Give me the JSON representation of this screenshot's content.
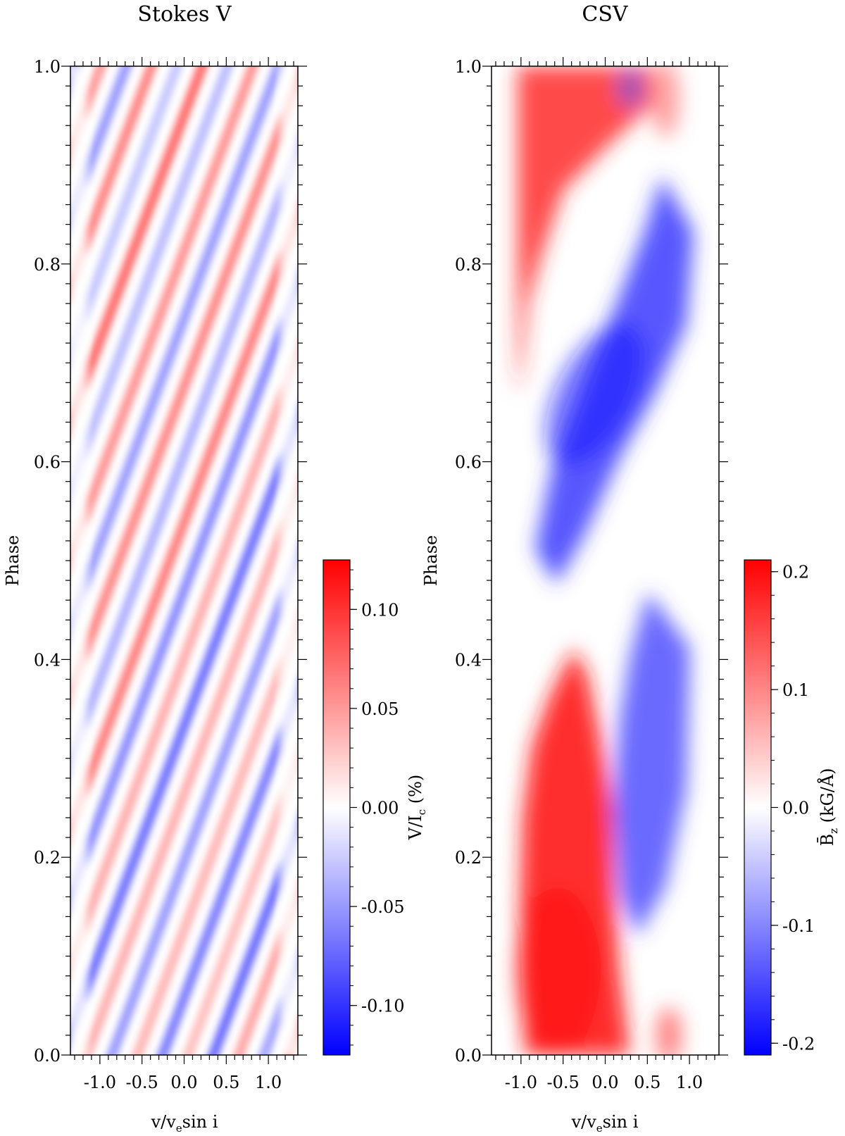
{
  "chart_data": [
    {
      "type": "heatmap",
      "title": "Stokes V",
      "xlabel": {
        "main": "v/v",
        "sub": "e",
        "rest": "sin i"
      },
      "ylabel": "Phase",
      "xlim": [
        -1.35,
        1.35
      ],
      "ylim": [
        0.0,
        1.0
      ],
      "x_ticks": [
        -1.0,
        -0.5,
        0.0,
        0.5,
        1.0
      ],
      "x_tick_labels": [
        "-1.0",
        "-0.5",
        "0.0",
        "0.5",
        "1.0"
      ],
      "y_ticks": [
        0.0,
        0.2,
        0.4,
        0.6,
        0.8,
        1.0
      ],
      "y_tick_labels": [
        "0.0",
        "0.2",
        "0.4",
        "0.6",
        "0.8",
        "1.0"
      ],
      "colorbar": {
        "label": {
          "main": "V/I",
          "sub": "c",
          "rest": " (%)"
        },
        "range": [
          -0.125,
          0.125
        ],
        "ticks": [
          -0.1,
          -0.05,
          0.0,
          0.05,
          0.1
        ],
        "tick_labels": [
          "-0.10",
          "-0.05",
          "0.00",
          "0.05",
          "0.10"
        ],
        "colors": {
          "low": "#0000ff",
          "mid": "#ffffff",
          "high": "#ff0000"
        }
      }
    },
    {
      "type": "heatmap",
      "title": "CSV",
      "xlabel": {
        "main": "v/v",
        "sub": "e",
        "rest": "sin i"
      },
      "ylabel": "Phase",
      "xlim": [
        -1.35,
        1.35
      ],
      "ylim": [
        0.0,
        1.0
      ],
      "x_ticks": [
        -1.0,
        -0.5,
        0.0,
        0.5,
        1.0
      ],
      "x_tick_labels": [
        "-1.0",
        "-0.5",
        "0.0",
        "0.5",
        "1.0"
      ],
      "y_ticks": [
        0.0,
        0.2,
        0.4,
        0.6,
        0.8,
        1.0
      ],
      "y_tick_labels": [
        "0.0",
        "0.2",
        "0.4",
        "0.6",
        "0.8",
        "1.0"
      ],
      "colorbar": {
        "label": {
          "main": "B̄",
          "sub": "z",
          "rest": " (kG/Å)"
        },
        "range": [
          -0.21,
          0.21
        ],
        "ticks": [
          -0.2,
          -0.1,
          0.0,
          0.1,
          0.2
        ],
        "tick_labels": [
          "-0.2",
          "-0.1",
          "0.0",
          "0.1",
          "0.2"
        ],
        "colors": {
          "low": "#0000ff",
          "mid": "#ffffff",
          "high": "#ff0000"
        }
      }
    }
  ]
}
